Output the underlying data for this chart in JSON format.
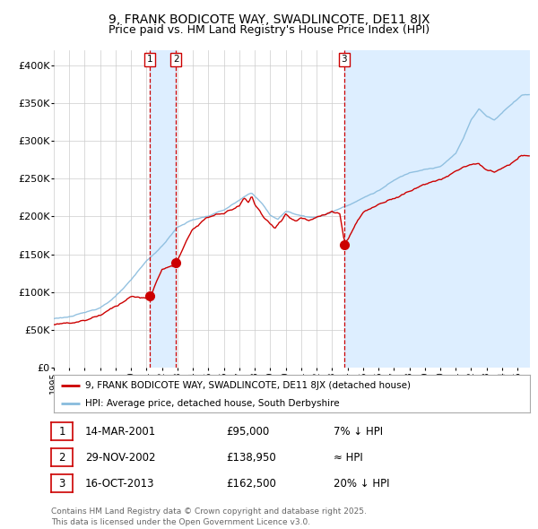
{
  "title": "9, FRANK BODICOTE WAY, SWADLINCOTE, DE11 8JX",
  "subtitle": "Price paid vs. HM Land Registry's House Price Index (HPI)",
  "ylabel_ticks": [
    "£0",
    "£50K",
    "£100K",
    "£150K",
    "£200K",
    "£250K",
    "£300K",
    "£350K",
    "£400K"
  ],
  "ytick_values": [
    0,
    50000,
    100000,
    150000,
    200000,
    250000,
    300000,
    350000,
    400000
  ],
  "ylim": [
    0,
    420000
  ],
  "xlim_start": 1995.0,
  "xlim_end": 2025.8,
  "sale_dates": [
    2001.19,
    2002.91,
    2013.79
  ],
  "sale_prices": [
    95000,
    138950,
    162500
  ],
  "sale_labels": [
    "1",
    "2",
    "3"
  ],
  "vline_color": "#cc0000",
  "vspan_color": "#ddeeff",
  "dot_color": "#cc0000",
  "hpi_line_color": "#88bbdd",
  "price_line_color": "#cc0000",
  "legend_label_price": "9, FRANK BODICOTE WAY, SWADLINCOTE, DE11 8JX (detached house)",
  "legend_label_hpi": "HPI: Average price, detached house, South Derbyshire",
  "table_data": [
    {
      "label": "1",
      "date": "14-MAR-2001",
      "price": "£95,000",
      "relation": "7% ↓ HPI"
    },
    {
      "label": "2",
      "date": "29-NOV-2002",
      "price": "£138,950",
      "relation": "≈ HPI"
    },
    {
      "label": "3",
      "date": "16-OCT-2013",
      "price": "£162,500",
      "relation": "20% ↓ HPI"
    }
  ],
  "footnote": "Contains HM Land Registry data © Crown copyright and database right 2025.\nThis data is licensed under the Open Government Licence v3.0.",
  "background_color": "#ffffff",
  "grid_color": "#cccccc",
  "title_fontsize": 10,
  "subtitle_fontsize": 9
}
